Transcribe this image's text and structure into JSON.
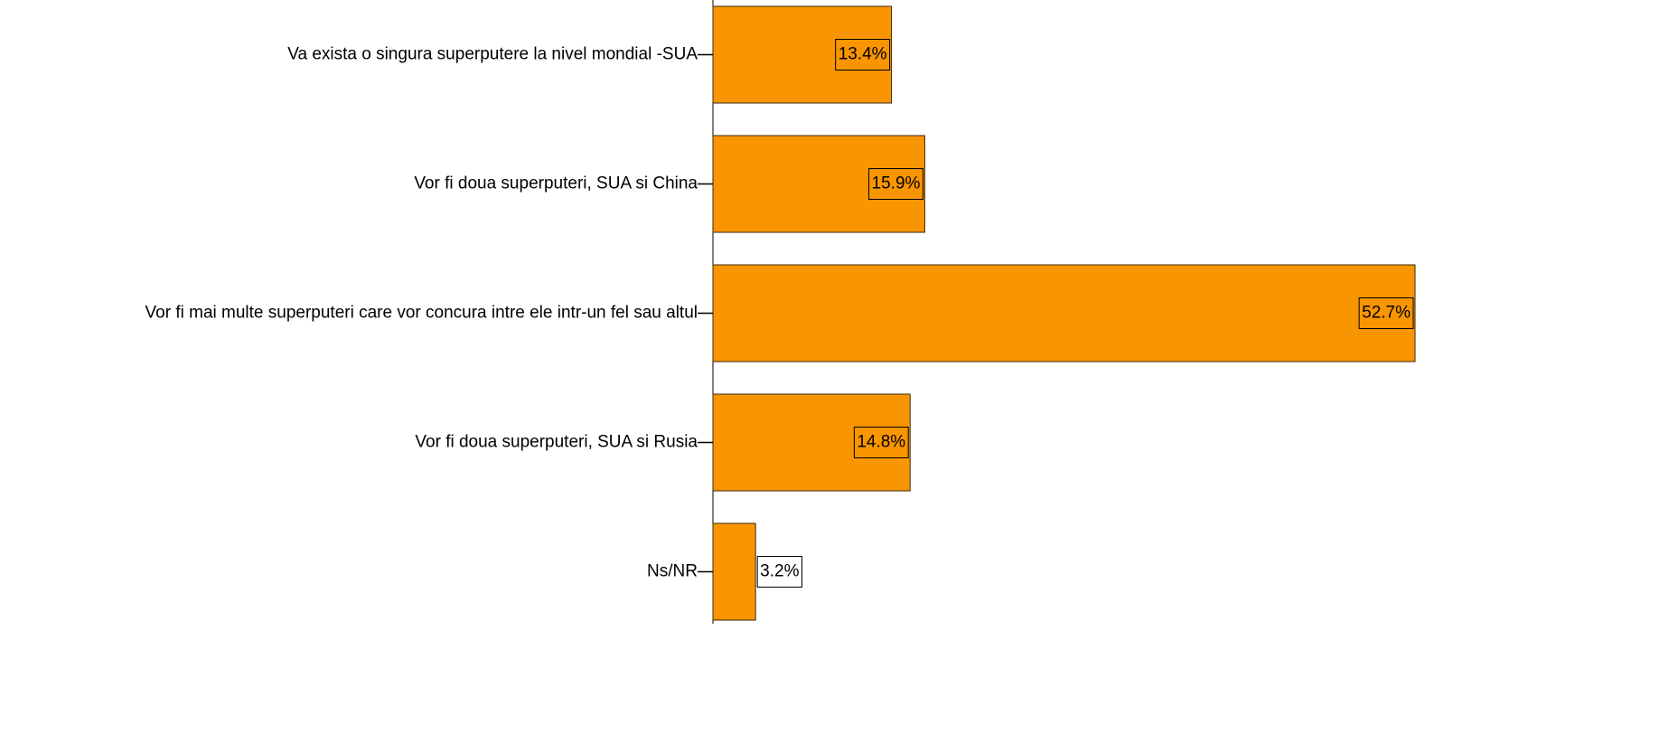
{
  "chart_data": {
    "type": "hbar",
    "categories": [
      "Va exista o singura superputere la nivel mondial -SUA",
      "Vor fi doua superputeri, SUA si China",
      "Vor fi mai multe superputeri care vor concura intre ele intr-un fel sau altul",
      "Vor fi doua superputeri, SUA si Rusia",
      "Ns/NR"
    ],
    "values": [
      13.4,
      15.9,
      52.7,
      14.8,
      3.2
    ],
    "value_labels": [
      "13.4%",
      "15.9%",
      "52.7%",
      "14.8%",
      "3.2%"
    ],
    "color": "#f99500"
  }
}
